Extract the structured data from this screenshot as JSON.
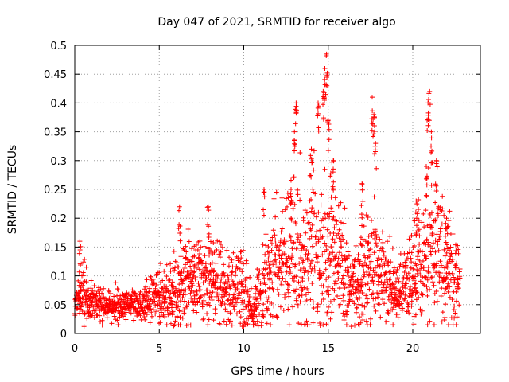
{
  "chart_data": {
    "type": "scatter",
    "title": "Day 047 of 2021, SRMTID for receiver algo",
    "xlabel": "GPS time / hours",
    "ylabel": "SRMTID / TECUs",
    "xlim": [
      0,
      24
    ],
    "ylim": [
      0,
      0.5
    ],
    "x_ticks": [
      0,
      5,
      10,
      15,
      20
    ],
    "y_ticks": [
      0,
      0.05,
      0.1,
      0.15,
      0.2,
      0.25,
      0.3,
      0.35,
      0.4,
      0.45,
      0.5
    ],
    "grid": true,
    "marker": "+",
    "color": "#ff0000",
    "series": [
      {
        "name": "SRMTID",
        "envelope_note": "approximate trend of the cloud of ~3000 '+' markers",
        "hours": [
          0.0,
          0.5,
          1.0,
          1.5,
          2.0,
          2.5,
          3.0,
          3.5,
          4.0,
          4.5,
          5.0,
          5.5,
          6.0,
          6.5,
          7.0,
          7.5,
          8.0,
          8.5,
          9.0,
          9.5,
          10.0,
          10.5,
          11.0,
          11.5,
          12.0,
          12.5,
          13.0,
          13.5,
          14.0,
          14.5,
          15.0,
          15.5,
          16.0,
          16.5,
          17.0,
          17.5,
          18.0,
          18.5,
          19.0,
          19.5,
          20.0,
          20.5,
          21.0,
          21.5,
          22.0,
          22.5,
          22.8
        ],
        "center": [
          0.05,
          0.07,
          0.05,
          0.05,
          0.05,
          0.05,
          0.05,
          0.055,
          0.05,
          0.06,
          0.065,
          0.07,
          0.08,
          0.09,
          0.09,
          0.095,
          0.1,
          0.09,
          0.08,
          0.08,
          0.075,
          0.03,
          0.07,
          0.1,
          0.12,
          0.13,
          0.14,
          0.11,
          0.15,
          0.14,
          0.16,
          0.13,
          0.1,
          0.08,
          0.1,
          0.12,
          0.11,
          0.09,
          0.07,
          0.08,
          0.11,
          0.12,
          0.13,
          0.14,
          0.12,
          0.1,
          0.09
        ],
        "spread": [
          0.012,
          0.025,
          0.015,
          0.012,
          0.012,
          0.012,
          0.012,
          0.012,
          0.012,
          0.018,
          0.02,
          0.025,
          0.035,
          0.035,
          0.035,
          0.035,
          0.04,
          0.035,
          0.03,
          0.03,
          0.035,
          0.012,
          0.03,
          0.045,
          0.05,
          0.05,
          0.06,
          0.05,
          0.065,
          0.065,
          0.06,
          0.05,
          0.04,
          0.03,
          0.045,
          0.05,
          0.05,
          0.035,
          0.025,
          0.035,
          0.045,
          0.05,
          0.05,
          0.045,
          0.045,
          0.035,
          0.025
        ],
        "peaks": [
          {
            "x": 0.3,
            "y": 0.16
          },
          {
            "x": 6.2,
            "y": 0.22
          },
          {
            "x": 7.9,
            "y": 0.22
          },
          {
            "x": 11.2,
            "y": 0.25
          },
          {
            "x": 12.8,
            "y": 0.25
          },
          {
            "x": 13.0,
            "y": 0.35
          },
          {
            "x": 13.1,
            "y": 0.4
          },
          {
            "x": 14.0,
            "y": 0.32
          },
          {
            "x": 14.4,
            "y": 0.4
          },
          {
            "x": 14.7,
            "y": 0.42
          },
          {
            "x": 14.8,
            "y": 0.46
          },
          {
            "x": 14.9,
            "y": 0.485
          },
          {
            "x": 15.0,
            "y": 0.37
          },
          {
            "x": 15.3,
            "y": 0.3
          },
          {
            "x": 17.0,
            "y": 0.26
          },
          {
            "x": 17.6,
            "y": 0.41
          },
          {
            "x": 17.7,
            "y": 0.38
          },
          {
            "x": 17.8,
            "y": 0.33
          },
          {
            "x": 20.8,
            "y": 0.29
          },
          {
            "x": 20.9,
            "y": 0.4
          },
          {
            "x": 21.0,
            "y": 0.42
          },
          {
            "x": 21.1,
            "y": 0.35
          },
          {
            "x": 21.4,
            "y": 0.3
          },
          {
            "x": 20.2,
            "y": 0.23
          },
          {
            "x": 22.0,
            "y": 0.2
          }
        ]
      }
    ]
  }
}
